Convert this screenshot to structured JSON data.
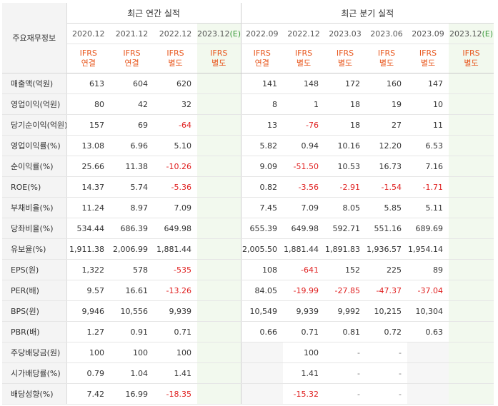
{
  "header": {
    "row_label": "주요재무정보",
    "annual_title": "최근 연간 실적",
    "quarter_title": "최근 분기 실적"
  },
  "periods": {
    "annual": [
      "2020.12",
      "2021.12",
      "2022.12",
      "2023.12(E)"
    ],
    "quarter": [
      "2022.09",
      "2022.12",
      "2023.03",
      "2023.06",
      "2023.09",
      "2023.12(E)"
    ]
  },
  "basis": {
    "annual": [
      [
        "IFRS",
        "연결"
      ],
      [
        "IFRS",
        "연결"
      ],
      [
        "IFRS",
        "별도"
      ],
      [
        "IFRS",
        "별도"
      ]
    ],
    "quarter": [
      [
        "IFRS",
        "연결"
      ],
      [
        "IFRS",
        "별도"
      ],
      [
        "IFRS",
        "별도"
      ],
      [
        "IFRS",
        "별도"
      ],
      [
        "IFRS",
        "별도"
      ],
      [
        "IFRS",
        "별도"
      ]
    ]
  },
  "rows": [
    {
      "label": "매출액(억원)",
      "values": [
        "613",
        "604",
        "620",
        "",
        "141",
        "148",
        "172",
        "160",
        "147",
        ""
      ]
    },
    {
      "label": "영업이익(억원)",
      "values": [
        "80",
        "42",
        "32",
        "",
        "8",
        "1",
        "18",
        "19",
        "10",
        ""
      ]
    },
    {
      "label": "당기순이익(억원)",
      "values": [
        "157",
        "69",
        "-64",
        "",
        "13",
        "-76",
        "18",
        "27",
        "11",
        ""
      ]
    },
    {
      "label": "영업이익률(%)",
      "values": [
        "13.08",
        "6.96",
        "5.10",
        "",
        "5.82",
        "0.94",
        "10.16",
        "12.20",
        "6.53",
        ""
      ]
    },
    {
      "label": "순이익률(%)",
      "values": [
        "25.66",
        "11.38",
        "-10.26",
        "",
        "9.09",
        "-51.50",
        "10.53",
        "16.73",
        "7.16",
        ""
      ]
    },
    {
      "label": "ROE(%)",
      "values": [
        "14.37",
        "5.74",
        "-5.36",
        "",
        "0.82",
        "-3.56",
        "-2.91",
        "-1.54",
        "-1.71",
        ""
      ]
    },
    {
      "label": "부채비율(%)",
      "values": [
        "11.24",
        "8.97",
        "7.09",
        "",
        "7.45",
        "7.09",
        "8.05",
        "5.85",
        "5.11",
        ""
      ]
    },
    {
      "label": "당좌비율(%)",
      "values": [
        "534.44",
        "686.39",
        "649.98",
        "",
        "655.39",
        "649.98",
        "592.71",
        "551.16",
        "689.69",
        ""
      ]
    },
    {
      "label": "유보율(%)",
      "values": [
        "1,911.38",
        "2,006.99",
        "1,881.44",
        "",
        "2,005.50",
        "1,881.44",
        "1,891.83",
        "1,936.57",
        "1,954.14",
        ""
      ]
    },
    {
      "label": "EPS(원)",
      "values": [
        "1,322",
        "578",
        "-535",
        "",
        "108",
        "-641",
        "152",
        "225",
        "89",
        ""
      ]
    },
    {
      "label": "PER(배)",
      "values": [
        "9.57",
        "16.61",
        "-13.26",
        "",
        "84.05",
        "-19.99",
        "-27.85",
        "-47.37",
        "-37.04",
        ""
      ]
    },
    {
      "label": "BPS(원)",
      "values": [
        "9,946",
        "10,556",
        "9,939",
        "",
        "10,549",
        "9,939",
        "9,992",
        "10,215",
        "10,304",
        ""
      ]
    },
    {
      "label": "PBR(배)",
      "values": [
        "1.27",
        "0.91",
        "0.71",
        "",
        "0.66",
        "0.71",
        "0.81",
        "0.72",
        "0.63",
        ""
      ]
    },
    {
      "label": "주당배당금(원)",
      "values": [
        "100",
        "100",
        "100",
        "",
        "",
        "100",
        "-",
        "-",
        "",
        ""
      ]
    },
    {
      "label": "시가배당률(%)",
      "values": [
        "0.79",
        "1.04",
        "1.41",
        "",
        "",
        "1.41",
        "-",
        "-",
        "",
        ""
      ]
    },
    {
      "label": "배당성향(%)",
      "values": [
        "7.42",
        "16.99",
        "-18.35",
        "",
        "",
        "-15.32",
        "-",
        "-",
        "",
        ""
      ]
    }
  ],
  "colors": {
    "basis_text": "#e8581f",
    "negative": "#e02020",
    "estimate_bg": "#f2f9ee",
    "label_bg": "#f4f4f4"
  }
}
